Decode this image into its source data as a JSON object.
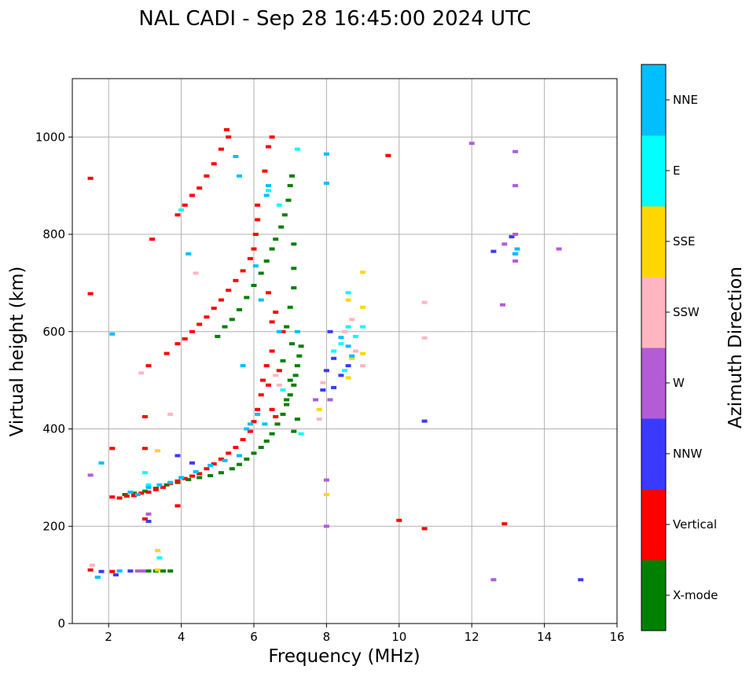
{
  "chart_data": {
    "type": "scatter",
    "title": "NAL CADI - Sep 28 16:45:00 2024 UTC",
    "xlabel": "Frequency (MHz)",
    "ylabel": "Virtual height (km)",
    "xlim": [
      1,
      16
    ],
    "ylim": [
      0,
      1120
    ],
    "xticks": [
      2,
      4,
      6,
      8,
      10,
      12,
      14,
      16
    ],
    "yticks": [
      0,
      200,
      400,
      600,
      800,
      1000
    ],
    "grid": true,
    "colorbar": {
      "label": "Azimuth Direction",
      "position": "right",
      "categories": [
        "X-mode",
        "Vertical",
        "NNW",
        "W",
        "SSW",
        "SSE",
        "E",
        "NNE"
      ],
      "colors": [
        "#008000",
        "#ff0000",
        "#3a3aff",
        "#b35cd6",
        "#ffb6c1",
        "#ffd700",
        "#00ffff",
        "#00bfff"
      ]
    },
    "series": [
      {
        "name": "X-mode",
        "color": "#008000",
        "points": [
          [
            2.45,
            265
          ],
          [
            2.7,
            268
          ],
          [
            3.0,
            272
          ],
          [
            3.3,
            278
          ],
          [
            3.6,
            285
          ],
          [
            3.9,
            290
          ],
          [
            4.2,
            296
          ],
          [
            4.5,
            300
          ],
          [
            4.8,
            304
          ],
          [
            5.1,
            310
          ],
          [
            5.4,
            318
          ],
          [
            5.6,
            327
          ],
          [
            5.8,
            338
          ],
          [
            6.0,
            350
          ],
          [
            6.2,
            362
          ],
          [
            6.35,
            375
          ],
          [
            6.5,
            390
          ],
          [
            6.65,
            410
          ],
          [
            6.8,
            430
          ],
          [
            6.9,
            450
          ],
          [
            7.0,
            470
          ],
          [
            7.1,
            490
          ],
          [
            7.15,
            510
          ],
          [
            7.2,
            530
          ],
          [
            7.25,
            550
          ],
          [
            7.3,
            570
          ],
          [
            3.1,
            108
          ],
          [
            3.3,
            108
          ],
          [
            3.5,
            108
          ],
          [
            3.7,
            108
          ],
          [
            5.0,
            590
          ],
          [
            5.2,
            610
          ],
          [
            5.4,
            625
          ],
          [
            5.6,
            645
          ],
          [
            5.8,
            670
          ],
          [
            6.0,
            695
          ],
          [
            6.2,
            720
          ],
          [
            6.35,
            745
          ],
          [
            6.5,
            770
          ],
          [
            6.6,
            790
          ],
          [
            6.75,
            815
          ],
          [
            6.85,
            840
          ],
          [
            6.95,
            870
          ],
          [
            7.0,
            900
          ],
          [
            7.05,
            920
          ],
          [
            7.1,
            780
          ],
          [
            7.1,
            730
          ],
          [
            7.1,
            690
          ],
          [
            7.0,
            650
          ],
          [
            6.9,
            610
          ],
          [
            7.05,
            575
          ],
          [
            6.8,
            540
          ],
          [
            7.0,
            500
          ],
          [
            6.9,
            460
          ],
          [
            7.2,
            420
          ],
          [
            7.1,
            395
          ]
        ]
      },
      {
        "name": "Vertical",
        "color": "#ff0000",
        "points": [
          [
            2.1,
            260
          ],
          [
            2.3,
            258
          ],
          [
            2.5,
            262
          ],
          [
            2.7,
            263
          ],
          [
            2.9,
            268
          ],
          [
            3.1,
            270
          ],
          [
            3.3,
            275
          ],
          [
            3.5,
            280
          ],
          [
            3.7,
            288
          ],
          [
            3.9,
            293
          ],
          [
            4.1,
            298
          ],
          [
            4.3,
            303
          ],
          [
            4.5,
            308
          ],
          [
            4.7,
            318
          ],
          [
            4.9,
            328
          ],
          [
            5.1,
            338
          ],
          [
            5.3,
            350
          ],
          [
            5.5,
            362
          ],
          [
            5.7,
            378
          ],
          [
            5.9,
            395
          ],
          [
            6.0,
            415
          ],
          [
            6.1,
            440
          ],
          [
            6.2,
            470
          ],
          [
            6.25,
            500
          ],
          [
            6.35,
            530
          ],
          [
            3.0,
            425
          ],
          [
            3.1,
            530
          ],
          [
            3.6,
            555
          ],
          [
            3.9,
            575
          ],
          [
            4.1,
            585
          ],
          [
            4.3,
            600
          ],
          [
            4.5,
            615
          ],
          [
            4.7,
            630
          ],
          [
            4.9,
            648
          ],
          [
            5.1,
            665
          ],
          [
            5.3,
            685
          ],
          [
            5.5,
            705
          ],
          [
            5.7,
            725
          ],
          [
            5.9,
            750
          ],
          [
            6.0,
            770
          ],
          [
            6.05,
            800
          ],
          [
            6.1,
            830
          ],
          [
            6.1,
            860
          ],
          [
            3.9,
            840
          ],
          [
            4.1,
            860
          ],
          [
            4.3,
            880
          ],
          [
            4.5,
            895
          ],
          [
            4.7,
            920
          ],
          [
            4.9,
            945
          ],
          [
            5.1,
            975
          ],
          [
            5.3,
            1000
          ],
          [
            5.25,
            1015
          ],
          [
            6.5,
            1000
          ],
          [
            6.4,
            980
          ],
          [
            6.3,
            930
          ],
          [
            6.4,
            680
          ],
          [
            6.6,
            640
          ],
          [
            6.5,
            620
          ],
          [
            6.8,
            600
          ],
          [
            6.5,
            560
          ],
          [
            6.7,
            520
          ],
          [
            6.4,
            490
          ],
          [
            6.5,
            440
          ],
          [
            6.6,
            425
          ],
          [
            1.5,
            915
          ],
          [
            1.5,
            678
          ],
          [
            3.2,
            790
          ],
          [
            9.7,
            962
          ],
          [
            10.0,
            212
          ],
          [
            10.7,
            195
          ],
          [
            12.9,
            205
          ],
          [
            3.0,
            215
          ],
          [
            3.9,
            242
          ],
          [
            3.0,
            360
          ],
          [
            2.1,
            360
          ],
          [
            1.5,
            110
          ],
          [
            2.1,
            107
          ]
        ]
      },
      {
        "name": "NNW",
        "color": "#3a3aff",
        "points": [
          [
            8.2,
            485
          ],
          [
            8.4,
            510
          ],
          [
            8.6,
            530
          ],
          [
            8.2,
            545
          ],
          [
            8.1,
            600
          ],
          [
            8.0,
            520
          ],
          [
            7.9,
            480
          ],
          [
            10.7,
            416
          ],
          [
            15.0,
            90
          ],
          [
            12.6,
            765
          ],
          [
            13.1,
            795
          ],
          [
            3.1,
            210
          ],
          [
            3.9,
            345
          ],
          [
            2.2,
            100
          ],
          [
            1.8,
            107
          ],
          [
            2.6,
            108
          ],
          [
            4.3,
            330
          ]
        ]
      },
      {
        "name": "W",
        "color": "#b35cd6",
        "points": [
          [
            13.2,
            970
          ],
          [
            13.2,
            900
          ],
          [
            13.2,
            800
          ],
          [
            13.2,
            760
          ],
          [
            13.2,
            745
          ],
          [
            12.85,
            655
          ],
          [
            12.9,
            780
          ],
          [
            14.4,
            770
          ],
          [
            12.6,
            90
          ],
          [
            8.0,
            295
          ],
          [
            8.0,
            200
          ],
          [
            8.1,
            460
          ],
          [
            12.0,
            987
          ],
          [
            1.5,
            305
          ],
          [
            2.8,
            108
          ],
          [
            3.1,
            225
          ],
          [
            7.7,
            460
          ],
          [
            2.95,
            108
          ]
        ]
      },
      {
        "name": "SSW",
        "color": "#ffb6c1",
        "points": [
          [
            9.0,
            530
          ],
          [
            8.8,
            560
          ],
          [
            8.5,
            600
          ],
          [
            8.7,
            625
          ],
          [
            10.7,
            660
          ],
          [
            10.7,
            587
          ],
          [
            4.4,
            720
          ],
          [
            7.8,
            420
          ],
          [
            7.9,
            495
          ],
          [
            6.6,
            510
          ],
          [
            6.7,
            490
          ],
          [
            1.55,
            120
          ],
          [
            2.9,
            515
          ],
          [
            3.7,
            430
          ]
        ]
      },
      {
        "name": "SSE",
        "color": "#ffd700",
        "points": [
          [
            3.35,
            355
          ],
          [
            3.35,
            110
          ],
          [
            9.0,
            555
          ],
          [
            8.6,
            665
          ],
          [
            9.0,
            722
          ],
          [
            9.0,
            650
          ],
          [
            8.7,
            545
          ],
          [
            8.6,
            505
          ],
          [
            7.8,
            440
          ],
          [
            8.0,
            265
          ],
          [
            3.35,
            150
          ]
        ]
      },
      {
        "name": "E",
        "color": "#00ffff",
        "points": [
          [
            3.4,
            135
          ],
          [
            8.6,
            680
          ],
          [
            9.0,
            610
          ],
          [
            8.8,
            590
          ],
          [
            8.6,
            610
          ],
          [
            8.4,
            575
          ],
          [
            8.2,
            560
          ],
          [
            8.5,
            520
          ],
          [
            7.2,
            975
          ],
          [
            6.4,
            890
          ],
          [
            6.8,
            480
          ],
          [
            4.0,
            850
          ],
          [
            7.3,
            390
          ],
          [
            6.7,
            860
          ],
          [
            3.1,
            285
          ],
          [
            3.0,
            310
          ]
        ]
      },
      {
        "name": "NNE",
        "color": "#00bfff",
        "points": [
          [
            2.6,
            270
          ],
          [
            2.8,
            265
          ],
          [
            3.1,
            280
          ],
          [
            3.4,
            285
          ],
          [
            3.7,
            290
          ],
          [
            4.0,
            300
          ],
          [
            4.4,
            312
          ],
          [
            4.8,
            325
          ],
          [
            5.2,
            335
          ],
          [
            5.6,
            345
          ],
          [
            5.8,
            400
          ],
          [
            5.9,
            410
          ],
          [
            6.1,
            430
          ],
          [
            6.3,
            410
          ],
          [
            6.05,
            735
          ],
          [
            6.2,
            665
          ],
          [
            5.7,
            530
          ],
          [
            6.4,
            900
          ],
          [
            6.35,
            880
          ],
          [
            7.2,
            600
          ],
          [
            8.4,
            588
          ],
          [
            8.6,
            570
          ],
          [
            8.7,
            550
          ],
          [
            13.25,
            770
          ],
          [
            13.2,
            760
          ],
          [
            8.0,
            965
          ],
          [
            8.0,
            905
          ],
          [
            4.2,
            760
          ],
          [
            2.1,
            595
          ],
          [
            1.8,
            330
          ],
          [
            5.5,
            960
          ],
          [
            5.6,
            920
          ],
          [
            1.7,
            95
          ],
          [
            2.3,
            108
          ],
          [
            6.7,
            600
          ]
        ]
      }
    ]
  }
}
